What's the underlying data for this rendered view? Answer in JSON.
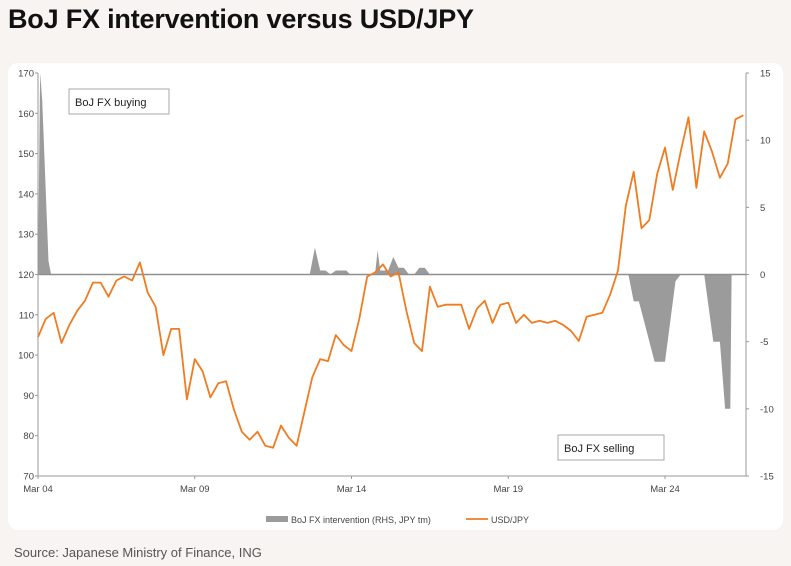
{
  "title": "BoJ FX intervention versus USD/JPY",
  "source": "Source: Japanese Ministry of Finance, ING",
  "colors": {
    "line": "#f07c22",
    "bars": "#9b9b9b",
    "zero": "#8f8f8f"
  },
  "chart_data": {
    "type": "line",
    "x_labels": [
      "Mar 04",
      "Mar 09",
      "Mar 14",
      "Mar 19",
      "Mar 24"
    ],
    "x_label_positions": [
      0,
      60,
      120,
      180,
      240
    ],
    "x_range": [
      0,
      271
    ],
    "left_axis": {
      "ylim": [
        70,
        170
      ],
      "ticks": [
        70,
        80,
        90,
        100,
        110,
        120,
        130,
        140,
        150,
        160,
        170
      ]
    },
    "right_axis": {
      "ylim": [
        -15,
        15
      ],
      "ticks": [
        -15,
        -10,
        -5,
        0,
        5,
        10,
        15
      ]
    },
    "annotations": [
      "BoJ FX buying",
      "BoJ FX selling"
    ],
    "legend": [
      "BoJ FX intervention (RHS, JPY tm)",
      "USD/JPY"
    ],
    "series": [
      {
        "name": "USD/JPY",
        "axis": "left",
        "x": [
          0,
          3,
          6,
          9,
          12,
          15,
          18,
          21,
          24,
          27,
          30,
          33,
          36,
          39,
          42,
          45,
          48,
          51,
          54,
          57,
          60,
          63,
          66,
          69,
          72,
          75,
          78,
          81,
          84,
          87,
          90,
          93,
          96,
          99,
          102,
          105,
          108,
          111,
          114,
          117,
          120,
          123,
          126,
          129,
          132,
          135,
          138,
          141,
          144,
          147,
          150,
          153,
          156,
          159,
          162,
          165,
          168,
          171,
          174,
          177,
          180,
          183,
          186,
          189,
          192,
          195,
          198,
          201,
          204,
          207,
          210,
          213,
          216,
          219,
          222,
          225,
          228,
          231,
          234,
          237,
          240,
          243,
          246,
          249,
          252,
          255,
          258,
          261,
          264,
          267,
          270
        ],
        "values": [
          104.5,
          109,
          110.5,
          103,
          107.5,
          111,
          113.5,
          118,
          118,
          114.5,
          118.5,
          119.5,
          118.5,
          123,
          115.5,
          112,
          100,
          106.5,
          106.5,
          89,
          99,
          96,
          89.5,
          93,
          93.5,
          86.5,
          81,
          79,
          81,
          77.5,
          77,
          82.5,
          79.5,
          77.5,
          86,
          94.5,
          99,
          98.5,
          105,
          102.5,
          101,
          109,
          119.5,
          120.5,
          122.5,
          119.5,
          120.5,
          111,
          103,
          101,
          117,
          112,
          112.5,
          112.5,
          112.5,
          106.5,
          111.5,
          113.5,
          108,
          112.5,
          113,
          108,
          110,
          108,
          108.5,
          108,
          108.5,
          107.5,
          106,
          103.5,
          109.5,
          110,
          110.5,
          115,
          121,
          137,
          145.5,
          131.5,
          133.5,
          145,
          151.5,
          141,
          150.5,
          159,
          141.5,
          155.5,
          150.5,
          144,
          147.5,
          158.5,
          159.5
        ]
      },
      {
        "name": "BoJ FX intervention (RHS, JPY tm)",
        "axis": "right",
        "type": "area",
        "x": [
          0,
          0.8,
          1.6,
          4,
          5,
          100,
          101,
          104,
          106,
          108,
          110,
          112,
          114,
          118,
          119.5,
          120,
          121,
          129,
          130,
          131,
          134,
          136,
          138,
          140,
          142,
          144,
          146,
          148,
          150,
          152,
          215,
          219,
          222,
          226,
          228,
          230,
          236,
          240,
          244,
          246,
          248,
          255,
          258.5,
          261,
          263,
          265,
          265.5
        ],
        "values": [
          0,
          15,
          13,
          1,
          0,
          0,
          0,
          0,
          2,
          0.3,
          0.3,
          0,
          0.3,
          0.3,
          0,
          0,
          0,
          0,
          1.8,
          0.3,
          0.3,
          1.3,
          0.5,
          0.5,
          0,
          0,
          0.5,
          0.5,
          0,
          0,
          0,
          0,
          0,
          0,
          -2,
          -2,
          -6.5,
          -6.5,
          -0.5,
          0,
          0,
          0,
          -5,
          -5,
          -10,
          -10,
          0
        ]
      }
    ]
  }
}
